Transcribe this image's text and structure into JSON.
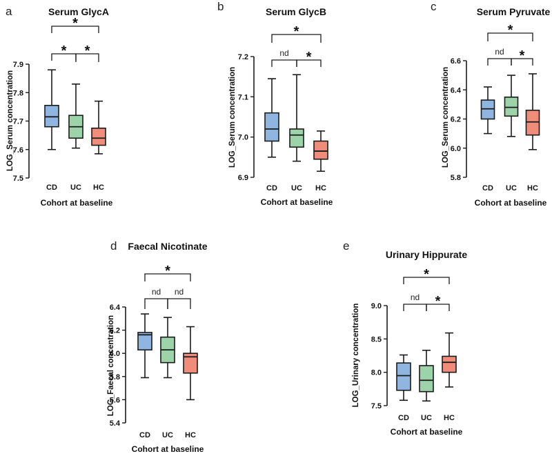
{
  "colors": {
    "CD": "#8fb6e0",
    "UC": "#9dd3a8",
    "HC": "#f08c7a",
    "stroke": "#1a1a1a"
  },
  "chart_data": [
    {
      "panel": "a",
      "type": "box",
      "title": "Serum GlycA",
      "ylabel": "LOG_Serum concentration",
      "xlabel": "Cohort at baseline",
      "categories": [
        "CD",
        "UC",
        "HC"
      ],
      "ylim": [
        7.5,
        7.9
      ],
      "yticks": [
        "7.5",
        "7.6",
        "7.7",
        "7.8",
        "7.9"
      ],
      "boxes": [
        {
          "group": "CD",
          "min": 7.6,
          "q1": 7.68,
          "median": 7.715,
          "q3": 7.755,
          "max": 7.88
        },
        {
          "group": "UC",
          "min": 7.605,
          "q1": 7.64,
          "median": 7.68,
          "q3": 7.72,
          "max": 7.83
        },
        {
          "group": "HC",
          "min": 7.585,
          "q1": 7.615,
          "median": 7.64,
          "q3": 7.675,
          "max": 7.77
        }
      ],
      "significance": [
        {
          "from": "CD",
          "to": "UC",
          "label": "*"
        },
        {
          "from": "UC",
          "to": "HC",
          "label": "*"
        },
        {
          "from": "CD",
          "to": "HC",
          "label": "*"
        }
      ]
    },
    {
      "panel": "b",
      "type": "box",
      "title": "Serum GlycB",
      "ylabel": "LOG_Serum concentration",
      "xlabel": "Cohort at baseline",
      "categories": [
        "CD",
        "UC",
        "HC"
      ],
      "ylim": [
        6.9,
        7.2
      ],
      "yticks": [
        "6.9",
        "7.0",
        "7.1",
        "7.2"
      ],
      "boxes": [
        {
          "group": "CD",
          "min": 6.95,
          "q1": 6.99,
          "median": 7.02,
          "q3": 7.06,
          "max": 7.145
        },
        {
          "group": "UC",
          "min": 6.94,
          "q1": 6.975,
          "median": 7.005,
          "q3": 7.02,
          "max": 7.155
        },
        {
          "group": "HC",
          "min": 6.915,
          "q1": 6.945,
          "median": 6.965,
          "q3": 6.99,
          "max": 7.015
        }
      ],
      "significance": [
        {
          "from": "CD",
          "to": "UC",
          "label": "nd"
        },
        {
          "from": "UC",
          "to": "HC",
          "label": "*"
        },
        {
          "from": "CD",
          "to": "HC",
          "label": "*"
        }
      ]
    },
    {
      "panel": "c",
      "type": "box",
      "title": "Serum Pyruvate",
      "ylabel": "LOG_Serum concentration",
      "xlabel": "Cohort at baseline",
      "categories": [
        "CD",
        "UC",
        "HC"
      ],
      "ylim": [
        5.8,
        6.6
      ],
      "yticks": [
        "5.8",
        "6.0",
        "6.2",
        "6.4",
        "6.6"
      ],
      "boxes": [
        {
          "group": "CD",
          "min": 6.1,
          "q1": 6.2,
          "median": 6.27,
          "q3": 6.33,
          "max": 6.42
        },
        {
          "group": "UC",
          "min": 6.08,
          "q1": 6.22,
          "median": 6.28,
          "q3": 6.35,
          "max": 6.5
        },
        {
          "group": "HC",
          "min": 5.99,
          "q1": 6.09,
          "median": 6.18,
          "q3": 6.26,
          "max": 6.51
        }
      ],
      "significance": [
        {
          "from": "CD",
          "to": "UC",
          "label": "nd"
        },
        {
          "from": "UC",
          "to": "HC",
          "label": "*"
        },
        {
          "from": "CD",
          "to": "HC",
          "label": "*"
        }
      ]
    },
    {
      "panel": "d",
      "type": "box",
      "title": "Faecal Nicotinate",
      "ylabel": "LOG_Faecal concentration",
      "xlabel": "Cohort at baseline",
      "categories": [
        "CD",
        "UC",
        "HC"
      ],
      "ylim": [
        5.4,
        6.4
      ],
      "yticks": [
        "5.4",
        "5.6",
        "5.8",
        "6.0",
        "6.2",
        "6.4"
      ],
      "boxes": [
        {
          "group": "CD",
          "min": 5.79,
          "q1": 6.03,
          "median": 6.16,
          "q3": 6.18,
          "max": 6.34
        },
        {
          "group": "UC",
          "min": 5.79,
          "q1": 5.92,
          "median": 6.03,
          "q3": 6.14,
          "max": 6.31
        },
        {
          "group": "HC",
          "min": 5.6,
          "q1": 5.83,
          "median": 5.97,
          "q3": 6.0,
          "max": 6.23
        }
      ],
      "significance": [
        {
          "from": "CD",
          "to": "UC",
          "label": "nd"
        },
        {
          "from": "UC",
          "to": "HC",
          "label": "nd"
        },
        {
          "from": "CD",
          "to": "HC",
          "label": "*"
        }
      ]
    },
    {
      "panel": "e",
      "type": "box",
      "title": "Urinary Hippurate",
      "ylabel": "LOG_Urinary  concentration",
      "xlabel": "Cohort at baseline",
      "categories": [
        "CD",
        "UC",
        "HC"
      ],
      "ylim": [
        7.5,
        9.0
      ],
      "yticks": [
        "7.5",
        "8.0",
        "8.5",
        "9.0"
      ],
      "boxes": [
        {
          "group": "CD",
          "min": 7.58,
          "q1": 7.73,
          "median": 7.95,
          "q3": 8.14,
          "max": 8.26
        },
        {
          "group": "UC",
          "min": 7.57,
          "q1": 7.71,
          "median": 7.88,
          "q3": 8.1,
          "max": 8.33
        },
        {
          "group": "HC",
          "min": 7.78,
          "q1": 8.0,
          "median": 8.15,
          "q3": 8.24,
          "max": 8.59
        }
      ],
      "significance": [
        {
          "from": "CD",
          "to": "UC",
          "label": "nd"
        },
        {
          "from": "UC",
          "to": "HC",
          "label": "*"
        },
        {
          "from": "CD",
          "to": "HC",
          "label": "*"
        }
      ]
    }
  ]
}
